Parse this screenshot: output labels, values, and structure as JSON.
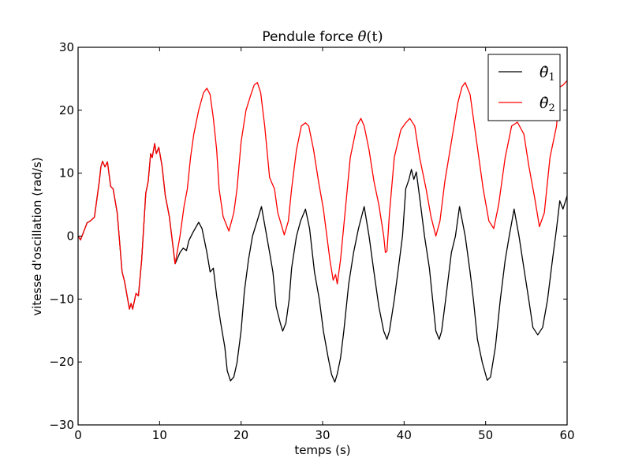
{
  "chart_data": {
    "type": "line",
    "title": "Pendule force θ̇(t)",
    "title_parts": {
      "prefix": "Pendule force ",
      "symbol": "θ̇",
      "suffix": "(t)"
    },
    "xlabel": "temps (s)",
    "ylabel": "vitesse d'oscillation (rad/s)",
    "xlim": [
      0,
      60
    ],
    "ylim": [
      -30,
      30
    ],
    "xticks": [
      0,
      10,
      20,
      30,
      40,
      50,
      60
    ],
    "yticks": [
      -30,
      -20,
      -10,
      0,
      10,
      20,
      30
    ],
    "xtick_labels": [
      "0",
      "10",
      "20",
      "30",
      "40",
      "50",
      "60"
    ],
    "ytick_labels": [
      "−30",
      "−20",
      "−10",
      "0",
      "10",
      "20",
      "30"
    ],
    "grid": false,
    "legend_position": "upper right",
    "series": [
      {
        "name": "θ̇1",
        "label_base": "θ̇",
        "label_sub": "1",
        "color": "#000000",
        "points": [
          [
            0,
            0
          ],
          [
            0.3,
            -0.6
          ],
          [
            1.1,
            2.1
          ],
          [
            1.5,
            2.4
          ],
          [
            2.0,
            3.0
          ],
          [
            2.6,
            8.7
          ],
          [
            2.8,
            11.0
          ],
          [
            3.0,
            11.9
          ],
          [
            3.3,
            11.0
          ],
          [
            3.6,
            11.8
          ],
          [
            4.0,
            7.9
          ],
          [
            4.3,
            7.5
          ],
          [
            4.8,
            3.7
          ],
          [
            5.4,
            -5.7
          ],
          [
            5.7,
            -7.2
          ],
          [
            6.1,
            -10.1
          ],
          [
            6.3,
            -11.6
          ],
          [
            6.5,
            -10.7
          ],
          [
            6.7,
            -11.6
          ],
          [
            7.1,
            -9.1
          ],
          [
            7.4,
            -9.5
          ],
          [
            7.8,
            -3.8
          ],
          [
            8.3,
            6.8
          ],
          [
            8.6,
            8.7
          ],
          [
            8.9,
            13.1
          ],
          [
            9.1,
            12.5
          ],
          [
            9.4,
            14.7
          ],
          [
            9.6,
            13.1
          ],
          [
            9.9,
            14.1
          ],
          [
            10.3,
            11.2
          ],
          [
            10.7,
            6.4
          ],
          [
            11.2,
            3.1
          ],
          [
            11.9,
            -4.4
          ],
          [
            12.5,
            -2.6
          ],
          [
            12.9,
            -1.9
          ],
          [
            13.3,
            -2.3
          ],
          [
            13.6,
            -0.7
          ],
          [
            14.1,
            0.6
          ],
          [
            14.8,
            2.2
          ],
          [
            15.2,
            1.2
          ],
          [
            15.8,
            -2.6
          ],
          [
            16.2,
            -5.7
          ],
          [
            16.6,
            -5.1
          ],
          [
            17.0,
            -9.5
          ],
          [
            17.5,
            -13.8
          ],
          [
            18.0,
            -17.6
          ],
          [
            18.3,
            -21.4
          ],
          [
            18.7,
            -23.0
          ],
          [
            19.1,
            -22.4
          ],
          [
            19.5,
            -20.1
          ],
          [
            20.0,
            -15.0
          ],
          [
            20.4,
            -8.8
          ],
          [
            20.9,
            -3.8
          ],
          [
            21.4,
            0.0
          ],
          [
            22.0,
            2.5
          ],
          [
            22.5,
            4.7
          ],
          [
            22.9,
            1.8
          ],
          [
            23.5,
            -2.6
          ],
          [
            23.9,
            -5.7
          ],
          [
            24.3,
            -11.2
          ],
          [
            24.8,
            -13.8
          ],
          [
            25.1,
            -15.1
          ],
          [
            25.5,
            -13.8
          ],
          [
            25.9,
            -10.1
          ],
          [
            26.2,
            -5.1
          ],
          [
            26.8,
            0.0
          ],
          [
            27.3,
            2.4
          ],
          [
            27.9,
            4.3
          ],
          [
            28.4,
            1.2
          ],
          [
            29.0,
            -5.7
          ],
          [
            29.6,
            -10.1
          ],
          [
            30.1,
            -15.1
          ],
          [
            30.7,
            -19.4
          ],
          [
            31.1,
            -22.0
          ],
          [
            31.5,
            -23.2
          ],
          [
            31.8,
            -21.9
          ],
          [
            32.2,
            -19.4
          ],
          [
            32.6,
            -15.1
          ],
          [
            33.2,
            -7.6
          ],
          [
            33.8,
            -2.6
          ],
          [
            34.4,
            1.2
          ],
          [
            35.1,
            4.7
          ],
          [
            35.7,
            0.0
          ],
          [
            36.3,
            -5.7
          ],
          [
            36.9,
            -11.2
          ],
          [
            37.5,
            -15.1
          ],
          [
            37.9,
            -16.4
          ],
          [
            38.2,
            -15.1
          ],
          [
            38.8,
            -10.1
          ],
          [
            39.3,
            -5.1
          ],
          [
            39.8,
            0.0
          ],
          [
            40.2,
            7.5
          ],
          [
            40.6,
            9.0
          ],
          [
            40.9,
            10.6
          ],
          [
            41.2,
            9.0
          ],
          [
            41.5,
            10.2
          ],
          [
            41.9,
            6.2
          ],
          [
            42.5,
            0.0
          ],
          [
            43.1,
            -5.1
          ],
          [
            43.5,
            -10.1
          ],
          [
            43.9,
            -15.1
          ],
          [
            44.3,
            -16.4
          ],
          [
            44.6,
            -15.1
          ],
          [
            45.1,
            -10.1
          ],
          [
            45.8,
            -2.6
          ],
          [
            46.3,
            0.0
          ],
          [
            46.8,
            4.7
          ],
          [
            47.5,
            0.0
          ],
          [
            48.1,
            -5.7
          ],
          [
            48.5,
            -10.1
          ],
          [
            49.0,
            -16.4
          ],
          [
            49.6,
            -20.1
          ],
          [
            50.2,
            -22.9
          ],
          [
            50.6,
            -22.4
          ],
          [
            51.2,
            -17.6
          ],
          [
            51.8,
            -10.1
          ],
          [
            52.4,
            -3.8
          ],
          [
            52.9,
            0.0
          ],
          [
            53.5,
            4.3
          ],
          [
            54.1,
            0.0
          ],
          [
            54.7,
            -5.1
          ],
          [
            55.3,
            -10.1
          ],
          [
            55.8,
            -14.5
          ],
          [
            56.4,
            -15.7
          ],
          [
            57.0,
            -14.5
          ],
          [
            57.6,
            -10.1
          ],
          [
            58.2,
            -3.8
          ],
          [
            58.7,
            1.2
          ],
          [
            59.1,
            5.6
          ],
          [
            59.5,
            4.3
          ],
          [
            60.0,
            6.4
          ]
        ]
      },
      {
        "name": "θ̇2",
        "label_base": "θ̇",
        "label_sub": "2",
        "color": "#ff0000",
        "points": [
          [
            0,
            0
          ],
          [
            0.3,
            -0.6
          ],
          [
            1.1,
            2.1
          ],
          [
            1.5,
            2.4
          ],
          [
            2.0,
            3.0
          ],
          [
            2.6,
            8.7
          ],
          [
            2.8,
            11.0
          ],
          [
            3.0,
            11.9
          ],
          [
            3.3,
            11.0
          ],
          [
            3.6,
            11.8
          ],
          [
            4.0,
            7.9
          ],
          [
            4.3,
            7.5
          ],
          [
            4.8,
            3.7
          ],
          [
            5.4,
            -5.7
          ],
          [
            5.7,
            -7.2
          ],
          [
            6.1,
            -10.1
          ],
          [
            6.3,
            -11.6
          ],
          [
            6.5,
            -10.7
          ],
          [
            6.7,
            -11.6
          ],
          [
            7.1,
            -9.1
          ],
          [
            7.4,
            -9.5
          ],
          [
            7.8,
            -3.8
          ],
          [
            8.3,
            6.8
          ],
          [
            8.6,
            8.7
          ],
          [
            8.9,
            13.1
          ],
          [
            9.1,
            12.5
          ],
          [
            9.4,
            14.7
          ],
          [
            9.6,
            13.1
          ],
          [
            9.9,
            14.1
          ],
          [
            10.3,
            11.2
          ],
          [
            10.7,
            6.4
          ],
          [
            11.2,
            3.1
          ],
          [
            11.9,
            -4.4
          ],
          [
            12.5,
            0.0
          ],
          [
            13.0,
            4.7
          ],
          [
            13.4,
            7.5
          ],
          [
            13.8,
            12.5
          ],
          [
            14.2,
            16.2
          ],
          [
            14.8,
            20.0
          ],
          [
            15.4,
            22.8
          ],
          [
            15.8,
            23.5
          ],
          [
            16.2,
            22.5
          ],
          [
            16.6,
            18.7
          ],
          [
            17.0,
            13.7
          ],
          [
            17.3,
            7.5
          ],
          [
            17.8,
            3.1
          ],
          [
            18.5,
            0.8
          ],
          [
            19.1,
            3.7
          ],
          [
            19.5,
            7.5
          ],
          [
            20.0,
            15.0
          ],
          [
            20.6,
            20.0
          ],
          [
            21.2,
            22.5
          ],
          [
            21.6,
            24.0
          ],
          [
            22.0,
            24.4
          ],
          [
            22.4,
            22.8
          ],
          [
            22.9,
            17.5
          ],
          [
            23.5,
            9.3
          ],
          [
            24.1,
            7.5
          ],
          [
            24.5,
            3.7
          ],
          [
            25.3,
            0.2
          ],
          [
            25.8,
            2.4
          ],
          [
            26.2,
            7.5
          ],
          [
            26.8,
            13.7
          ],
          [
            27.4,
            17.5
          ],
          [
            27.9,
            18.0
          ],
          [
            28.3,
            17.5
          ],
          [
            28.9,
            13.7
          ],
          [
            29.5,
            8.7
          ],
          [
            30.1,
            4.3
          ],
          [
            30.9,
            -3.8
          ],
          [
            31.3,
            -7.0
          ],
          [
            31.6,
            -6.1
          ],
          [
            31.8,
            -7.6
          ],
          [
            32.2,
            -3.8
          ],
          [
            32.8,
            4.3
          ],
          [
            33.4,
            12.5
          ],
          [
            34.2,
            17.5
          ],
          [
            34.7,
            18.7
          ],
          [
            35.1,
            17.5
          ],
          [
            35.7,
            13.7
          ],
          [
            36.3,
            8.7
          ],
          [
            36.9,
            5.0
          ],
          [
            37.5,
            0.0
          ],
          [
            37.7,
            -2.6
          ],
          [
            37.9,
            -2.4
          ],
          [
            38.2,
            3.5
          ],
          [
            38.8,
            12.5
          ],
          [
            39.6,
            16.9
          ],
          [
            40.2,
            18.0
          ],
          [
            40.7,
            18.7
          ],
          [
            41.3,
            17.5
          ],
          [
            41.9,
            12.5
          ],
          [
            42.7,
            7.5
          ],
          [
            43.3,
            3.1
          ],
          [
            43.9,
            0.0
          ],
          [
            44.4,
            2.4
          ],
          [
            45.0,
            8.7
          ],
          [
            45.8,
            15.0
          ],
          [
            46.6,
            21.2
          ],
          [
            47.1,
            23.7
          ],
          [
            47.5,
            24.4
          ],
          [
            48.1,
            22.5
          ],
          [
            48.9,
            15.0
          ],
          [
            49.7,
            7.5
          ],
          [
            50.4,
            2.4
          ],
          [
            51.0,
            1.2
          ],
          [
            51.6,
            5.0
          ],
          [
            52.4,
            12.5
          ],
          [
            53.2,
            17.5
          ],
          [
            53.9,
            18.1
          ],
          [
            54.7,
            16.2
          ],
          [
            55.3,
            11.2
          ],
          [
            56.0,
            6.2
          ],
          [
            56.6,
            1.5
          ],
          [
            57.2,
            3.7
          ],
          [
            57.9,
            12.5
          ],
          [
            58.7,
            17.5
          ],
          [
            59.1,
            23.7
          ],
          [
            59.5,
            24.0
          ],
          [
            60.0,
            24.7
          ]
        ]
      }
    ]
  }
}
